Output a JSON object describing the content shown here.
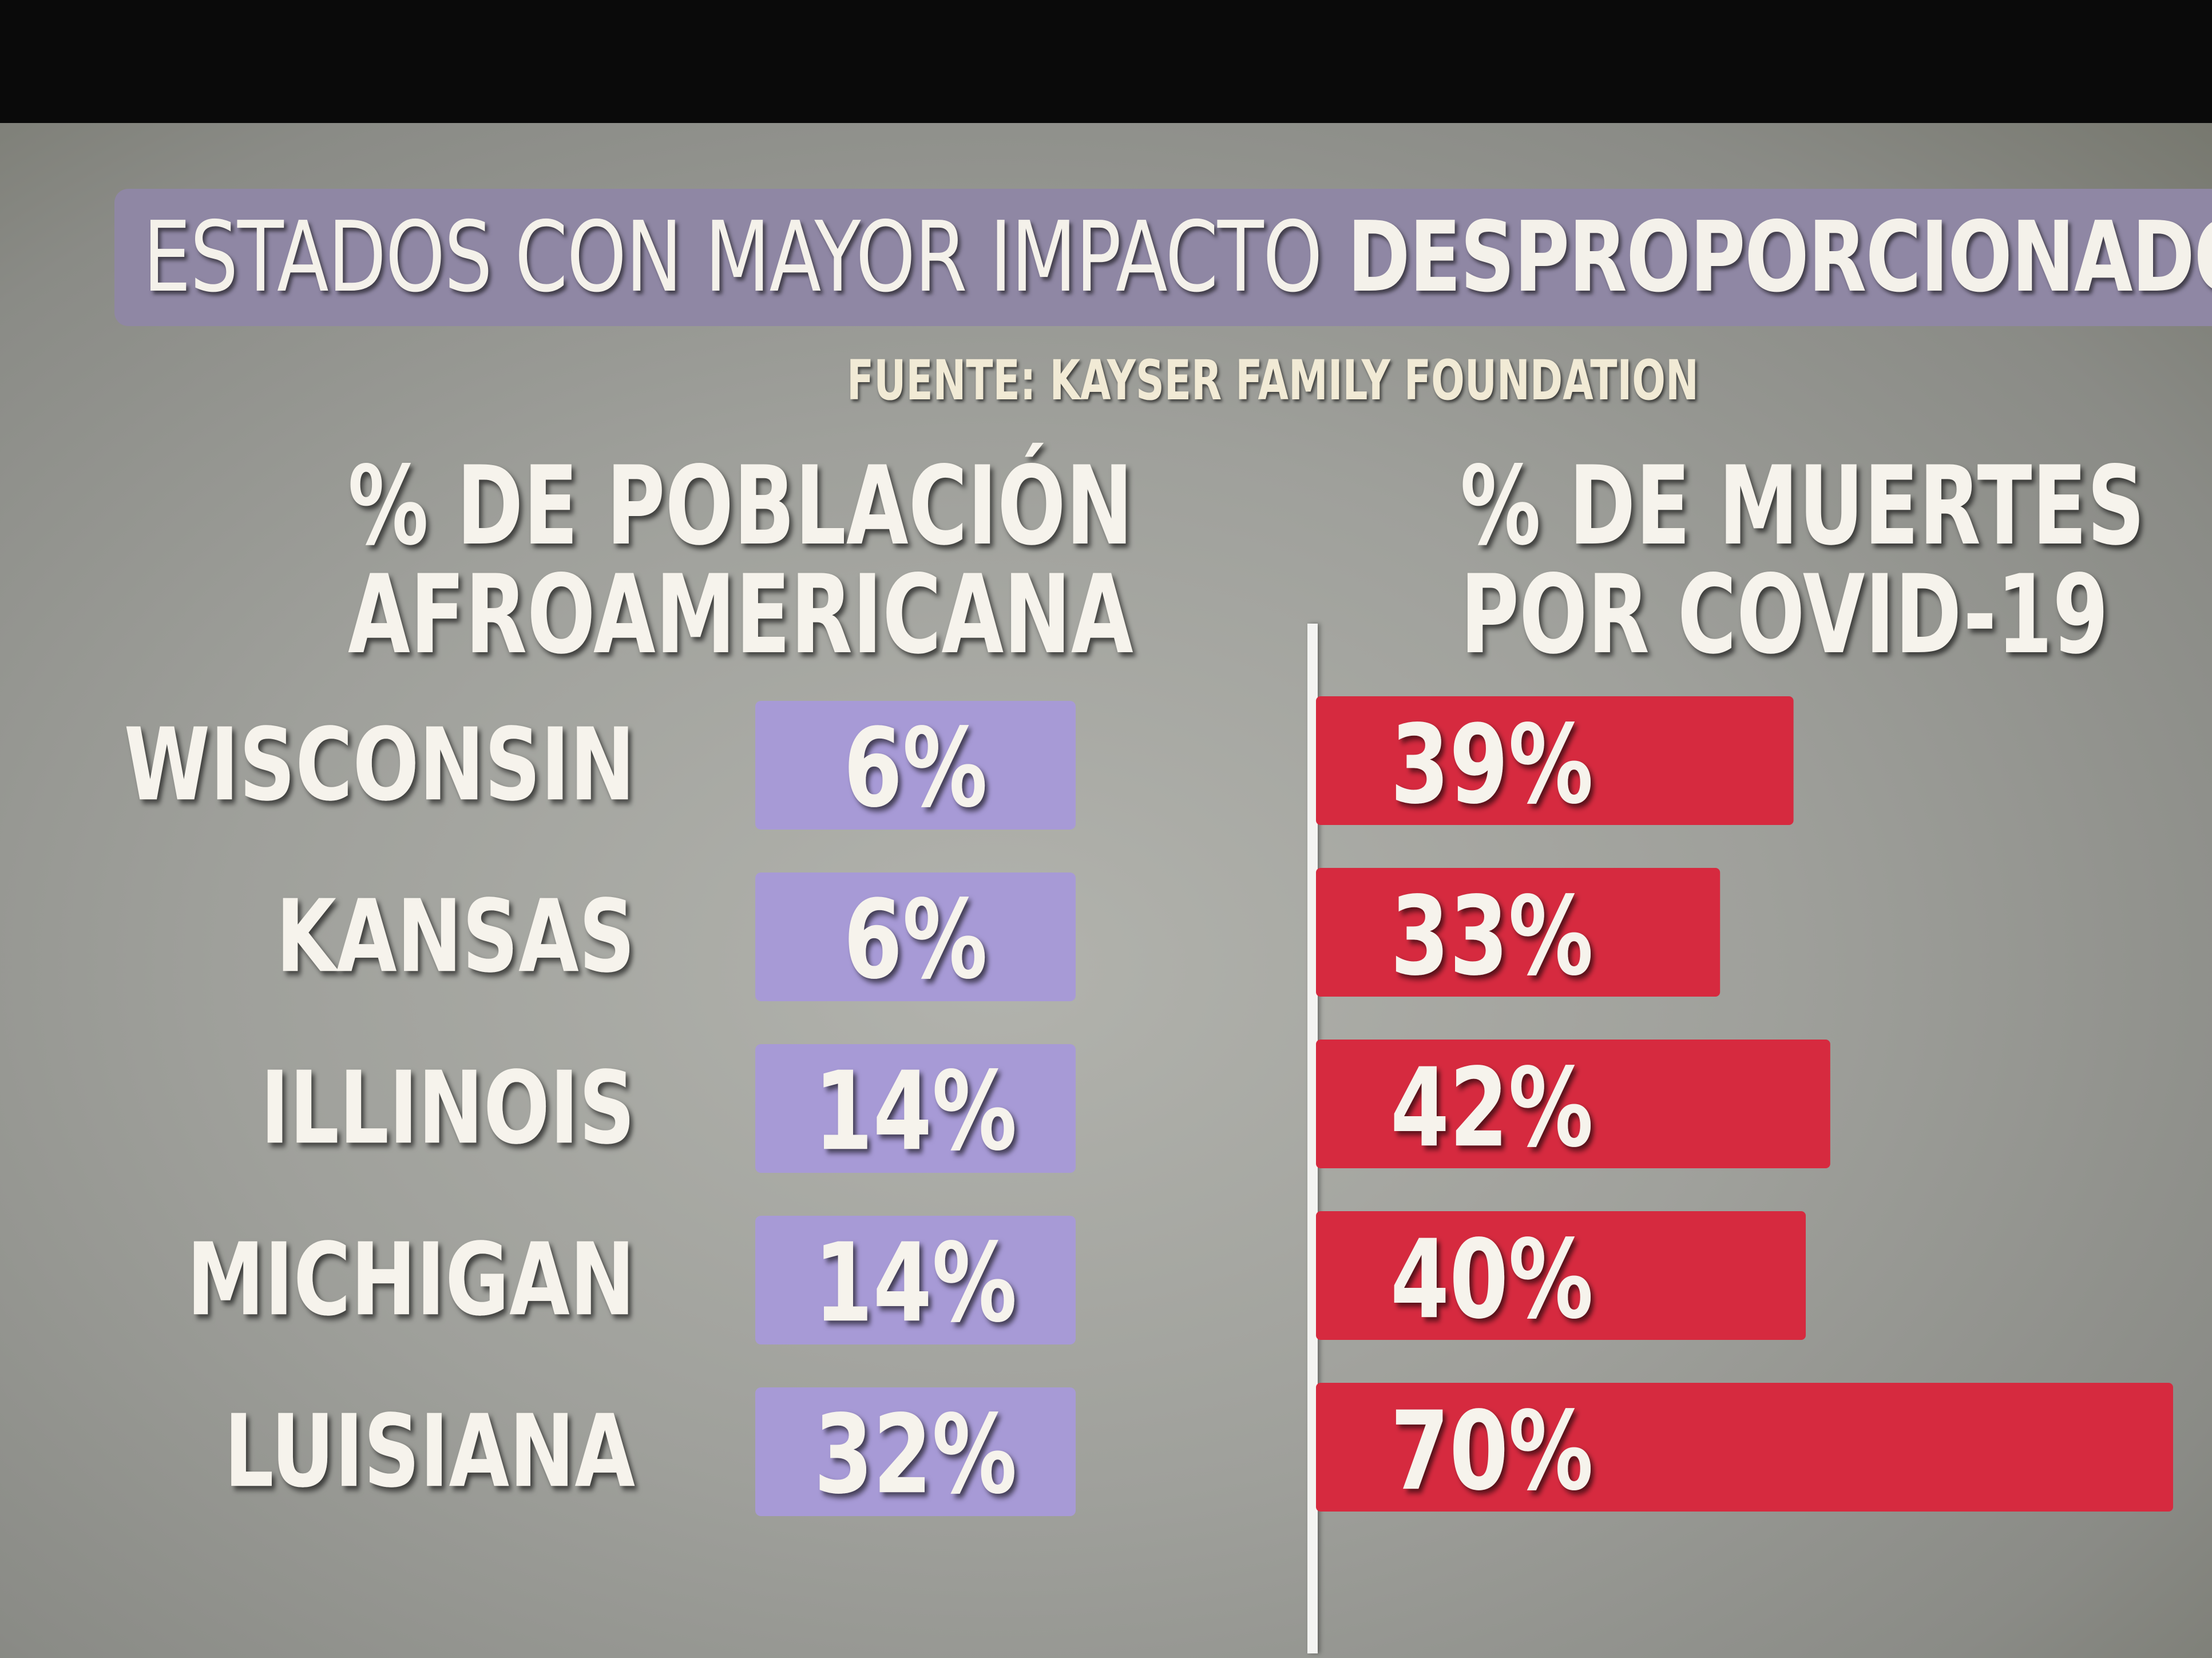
{
  "colors": {
    "purple_bar": "#a79ad6",
    "red_bar": "#d62a3f",
    "text_light": "#f6f3ec"
  },
  "chart_data": {
    "type": "bar",
    "title_light": "ESTADOS CON MAYOR IMPACTO",
    "title_bold": "DESPROPORCIONADO POR COVID-",
    "source": "FUENTE: KAYSER FAMILY FOUNDATION",
    "categories": [
      "WISCONSIN",
      "KANSAS",
      "ILLINOIS",
      "MICHIGAN",
      "LUISIANA"
    ],
    "series": [
      {
        "name": "% DE POBLACIÓN AFROAMERICANA",
        "name_line1": "% DE POBLACIÓN",
        "name_line2": "AFROAMERICANA",
        "values": [
          6,
          6,
          14,
          14,
          32
        ],
        "labels": [
          "6%",
          "6%",
          "14%",
          "14%",
          "32%"
        ]
      },
      {
        "name": "% DE MUERTES POR COVID-19",
        "name_line1": "% DE MUERTES",
        "name_line2": "POR COVID-19",
        "values": [
          39,
          33,
          42,
          40,
          70
        ],
        "labels": [
          "39%",
          "33%",
          "42%",
          "40%",
          "70%"
        ]
      }
    ]
  }
}
